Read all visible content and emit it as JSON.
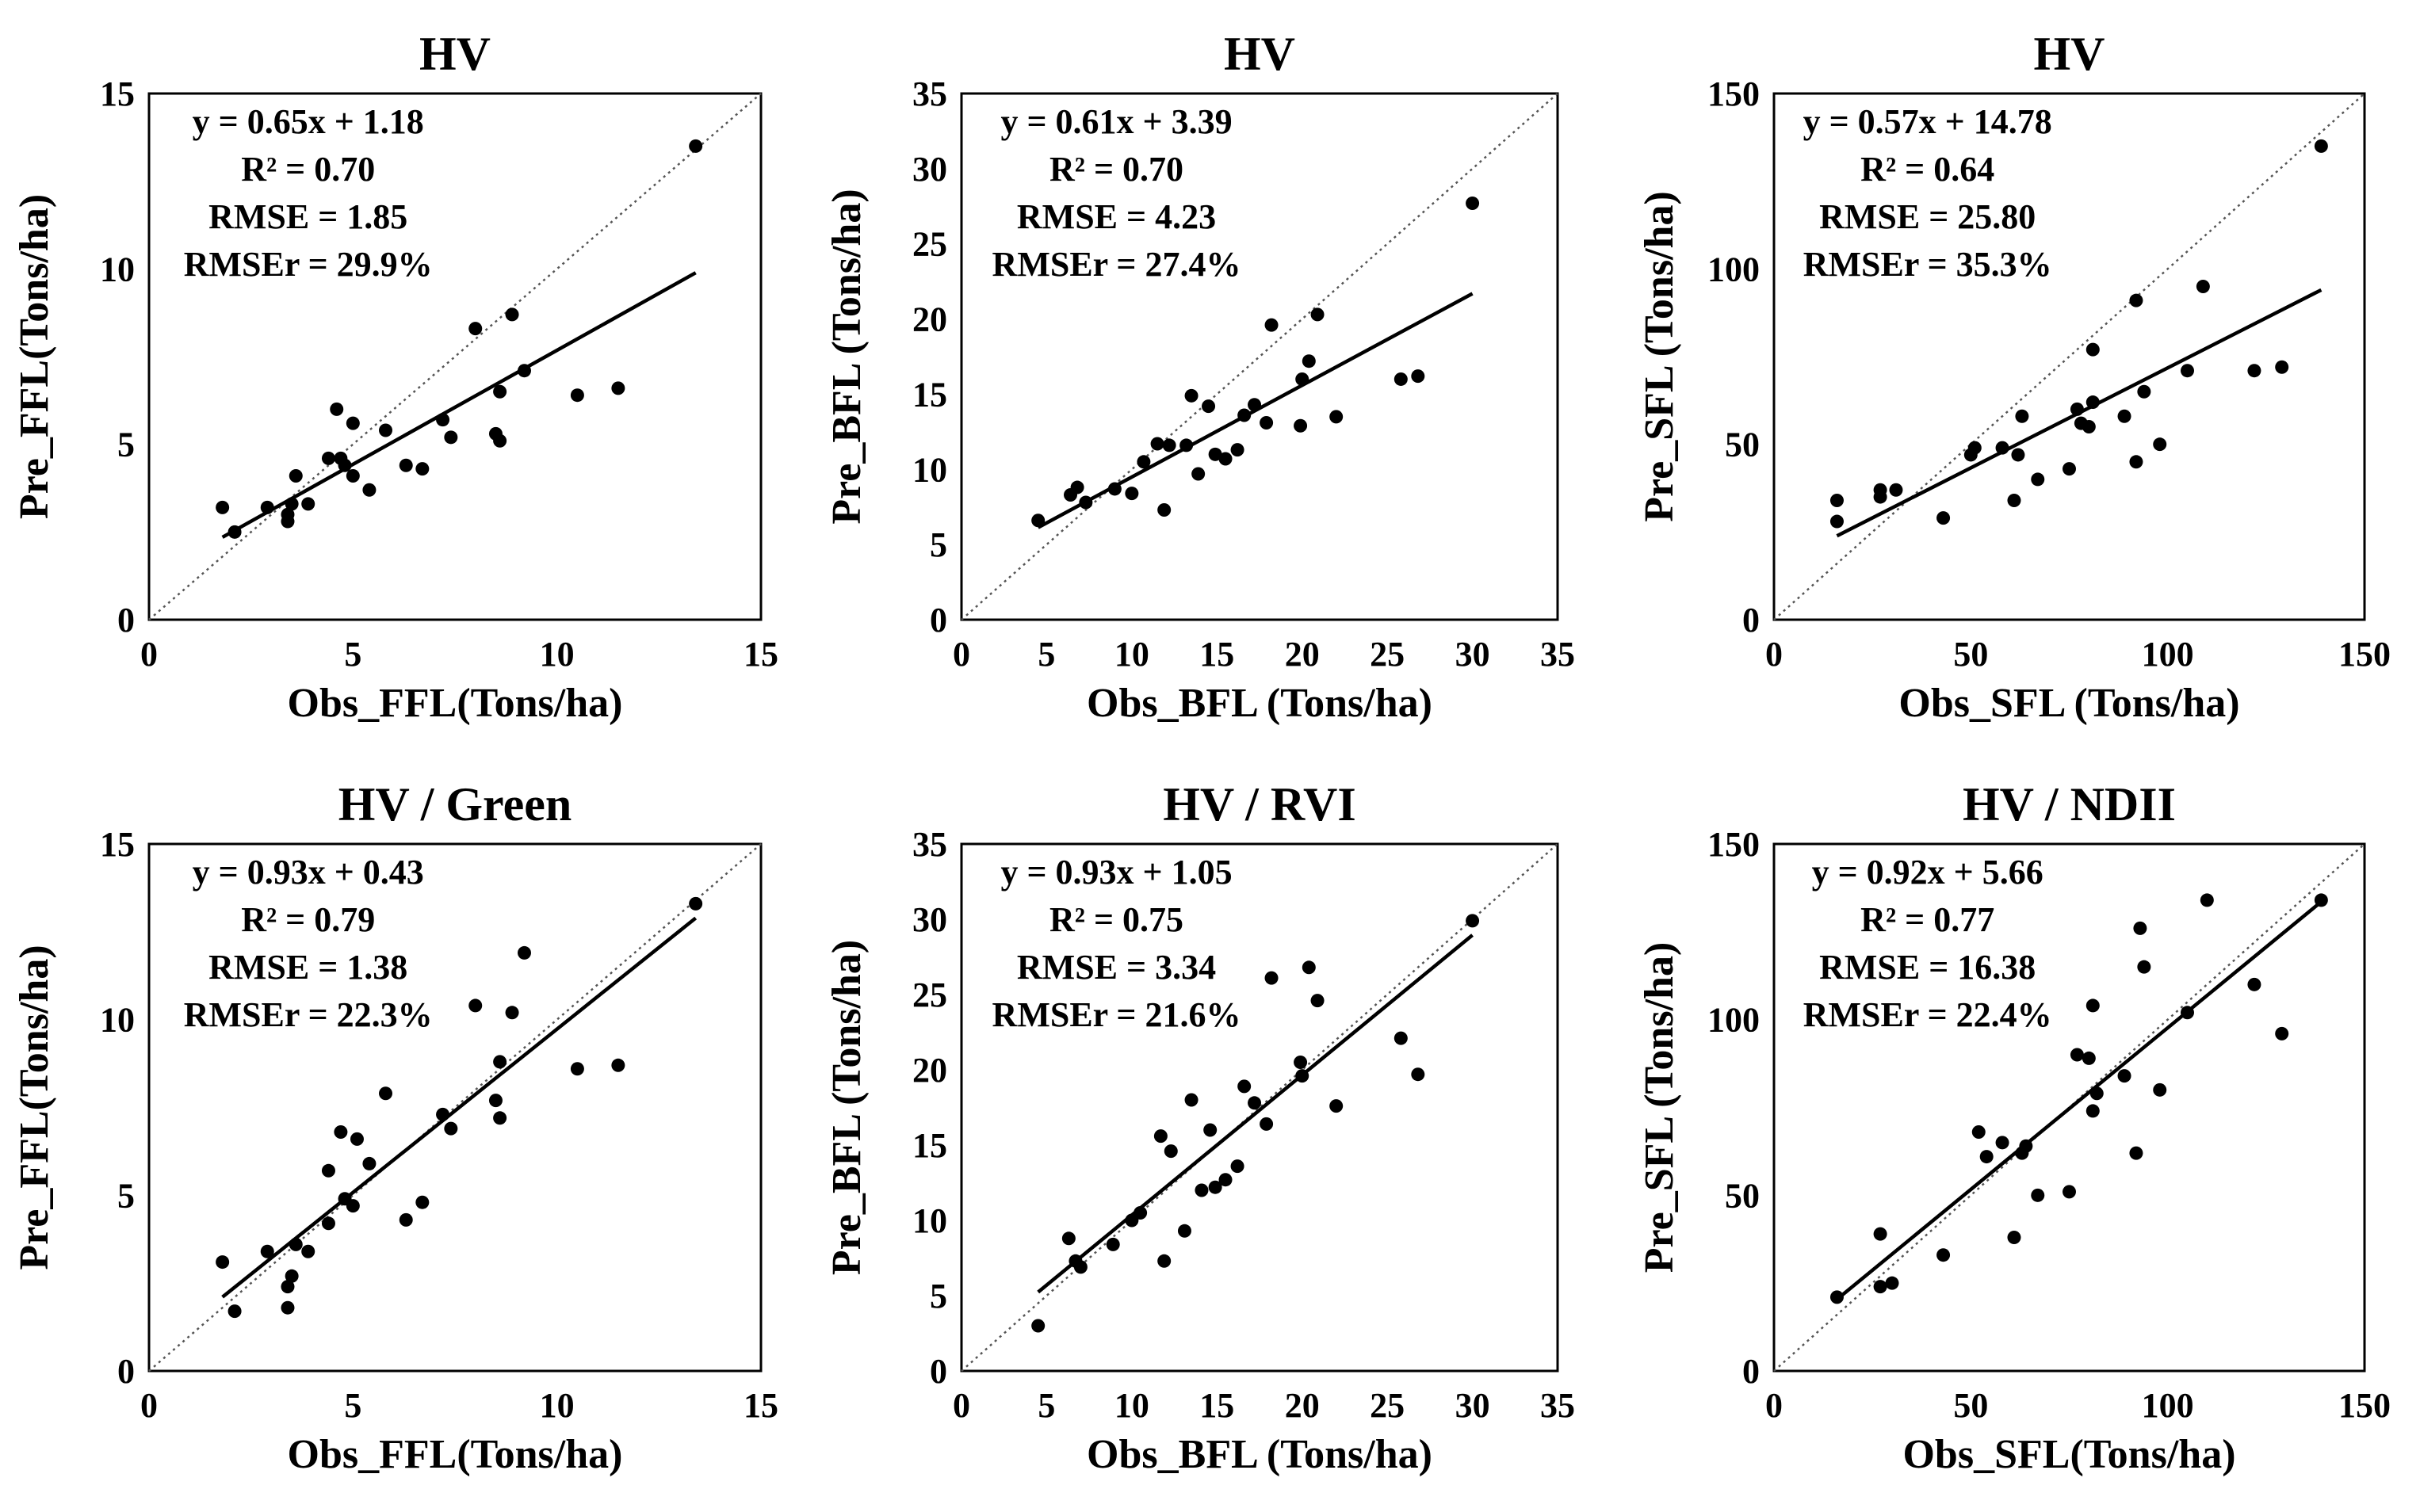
{
  "chart_data": [
    {
      "type": "scatter",
      "title": "HV",
      "xlabel": "Obs_FFL(Tons/ha)",
      "ylabel": "Pre_FFL(Tons/ha)",
      "xlim": [
        0,
        15
      ],
      "ylim": [
        0,
        15
      ],
      "xticks": [
        0,
        5,
        10,
        15
      ],
      "yticks": [
        0,
        5,
        10,
        15
      ],
      "equation": {
        "lines": [
          "y = 0.65x + 1.18",
          "R² = 0.70",
          "RMSE = 1.85",
          "RMSEr = 29.9%"
        ]
      },
      "fit": {
        "slope": 0.65,
        "intercept": 1.18,
        "x_range": [
          1.8,
          13.4
        ]
      },
      "one_to_one_line": true,
      "series": [
        {
          "name": "observations",
          "points": [
            [
              1.8,
              3.2
            ],
            [
              2.1,
              2.5
            ],
            [
              2.9,
              3.2
            ],
            [
              3.4,
              3.0
            ],
            [
              3.4,
              2.8
            ],
            [
              3.5,
              3.3
            ],
            [
              3.6,
              4.1
            ],
            [
              3.9,
              3.3
            ],
            [
              4.4,
              4.6
            ],
            [
              4.6,
              6.0
            ],
            [
              4.7,
              4.6
            ],
            [
              4.8,
              4.4
            ],
            [
              5.0,
              4.1
            ],
            [
              5.0,
              5.6
            ],
            [
              5.4,
              3.7
            ],
            [
              5.8,
              5.4
            ],
            [
              6.3,
              4.4
            ],
            [
              6.7,
              4.3
            ],
            [
              7.2,
              5.7
            ],
            [
              7.4,
              5.2
            ],
            [
              8.0,
              8.3
            ],
            [
              8.5,
              5.3
            ],
            [
              8.6,
              5.1
            ],
            [
              8.6,
              6.5
            ],
            [
              8.9,
              8.7
            ],
            [
              9.2,
              7.1
            ],
            [
              10.5,
              6.4
            ],
            [
              11.5,
              6.6
            ],
            [
              13.4,
              13.5
            ]
          ]
        }
      ]
    },
    {
      "type": "scatter",
      "title": "HV",
      "xlabel": "Obs_BFL (Tons/ha)",
      "ylabel": "Pre_BFL (Tons/ha)",
      "xlim": [
        0,
        35
      ],
      "ylim": [
        0,
        35
      ],
      "xticks": [
        0,
        5,
        10,
        15,
        20,
        25,
        30,
        35
      ],
      "yticks": [
        0,
        5,
        10,
        15,
        20,
        25,
        30,
        35
      ],
      "equation": {
        "lines": [
          "y = 0.61x + 3.39",
          "R² = 0.70",
          "RMSE = 4.23",
          "RMSEr = 27.4%"
        ]
      },
      "fit": {
        "slope": 0.61,
        "intercept": 3.39,
        "x_range": [
          4.5,
          30
        ]
      },
      "one_to_one_line": true,
      "series": [
        {
          "name": "observations",
          "points": [
            [
              4.5,
              6.6
            ],
            [
              6.4,
              8.3
            ],
            [
              6.8,
              8.8
            ],
            [
              7.3,
              7.8
            ],
            [
              9.0,
              8.7
            ],
            [
              10.0,
              8.4
            ],
            [
              10.7,
              10.5
            ],
            [
              11.5,
              11.7
            ],
            [
              11.9,
              7.3
            ],
            [
              12.2,
              11.6
            ],
            [
              13.2,
              11.6
            ],
            [
              13.5,
              14.9
            ],
            [
              13.9,
              9.7
            ],
            [
              14.5,
              14.2
            ],
            [
              14.9,
              11.0
            ],
            [
              15.5,
              10.7
            ],
            [
              16.2,
              11.3
            ],
            [
              16.6,
              13.6
            ],
            [
              17.2,
              14.3
            ],
            [
              17.9,
              13.1
            ],
            [
              18.2,
              19.6
            ],
            [
              19.9,
              12.9
            ],
            [
              20.0,
              16.0
            ],
            [
              20.4,
              17.2
            ],
            [
              20.9,
              20.3
            ],
            [
              22.0,
              13.5
            ],
            [
              25.8,
              16.0
            ],
            [
              26.8,
              16.2
            ],
            [
              30.0,
              27.7
            ]
          ]
        }
      ]
    },
    {
      "type": "scatter",
      "title": "HV",
      "xlabel": "Obs_SFL (Tons/ha)",
      "ylabel": "Pre_SFL (Tons/ha)",
      "xlim": [
        0,
        150
      ],
      "ylim": [
        0,
        150
      ],
      "xticks": [
        0,
        50,
        100,
        150
      ],
      "yticks": [
        0,
        50,
        100,
        150
      ],
      "equation": {
        "lines": [
          "y = 0.57x + 14.78",
          "R² = 0.64",
          "RMSE = 25.80",
          "RMSEr = 35.3%"
        ]
      },
      "fit": {
        "slope": 0.57,
        "intercept": 14.78,
        "x_range": [
          16,
          139
        ]
      },
      "one_to_one_line": true,
      "series": [
        {
          "name": "observations",
          "points": [
            [
              16,
              28
            ],
            [
              16,
              34
            ],
            [
              27,
              35
            ],
            [
              27,
              37
            ],
            [
              31,
              37
            ],
            [
              43,
              29
            ],
            [
              50,
              47
            ],
            [
              51,
              49
            ],
            [
              58,
              49
            ],
            [
              61,
              34
            ],
            [
              62,
              47
            ],
            [
              63,
              58
            ],
            [
              67,
              40
            ],
            [
              75,
              43
            ],
            [
              77,
              60
            ],
            [
              78,
              56
            ],
            [
              80,
              55
            ],
            [
              81,
              62
            ],
            [
              81,
              77
            ],
            [
              89,
              58
            ],
            [
              92,
              45
            ],
            [
              92,
              91
            ],
            [
              94,
              65
            ],
            [
              98,
              50
            ],
            [
              105,
              71
            ],
            [
              109,
              95
            ],
            [
              122,
              71
            ],
            [
              129,
              72
            ],
            [
              139,
              135
            ]
          ]
        }
      ]
    },
    {
      "type": "scatter",
      "title": "HV / Green",
      "xlabel": "Obs_FFL(Tons/ha)",
      "ylabel": "Pre_FFL(Tons/ha)",
      "xlim": [
        0,
        15
      ],
      "ylim": [
        0,
        15
      ],
      "xticks": [
        0,
        5,
        10,
        15
      ],
      "yticks": [
        0,
        5,
        10,
        15
      ],
      "equation": {
        "lines": [
          "y = 0.93x + 0.43",
          "R² = 0.79",
          "RMSE = 1.38",
          "RMSEr = 22.3%"
        ]
      },
      "fit": {
        "slope": 0.93,
        "intercept": 0.43,
        "x_range": [
          1.8,
          13.4
        ]
      },
      "one_to_one_line": true,
      "series": [
        {
          "name": "observations",
          "points": [
            [
              1.8,
              3.1
            ],
            [
              2.1,
              1.7
            ],
            [
              2.9,
              3.4
            ],
            [
              3.4,
              2.4
            ],
            [
              3.4,
              1.8
            ],
            [
              3.5,
              2.7
            ],
            [
              3.6,
              3.6
            ],
            [
              3.9,
              3.4
            ],
            [
              4.4,
              5.7
            ],
            [
              4.4,
              4.2
            ],
            [
              4.7,
              6.8
            ],
            [
              4.8,
              4.9
            ],
            [
              5.0,
              4.7
            ],
            [
              5.1,
              6.6
            ],
            [
              5.4,
              5.9
            ],
            [
              5.8,
              7.9
            ],
            [
              6.3,
              4.3
            ],
            [
              6.7,
              4.8
            ],
            [
              7.2,
              7.3
            ],
            [
              7.4,
              6.9
            ],
            [
              8.0,
              10.4
            ],
            [
              8.5,
              7.7
            ],
            [
              8.6,
              7.2
            ],
            [
              8.6,
              8.8
            ],
            [
              8.9,
              10.2
            ],
            [
              9.2,
              11.9
            ],
            [
              10.5,
              8.6
            ],
            [
              11.5,
              8.7
            ],
            [
              13.4,
              13.3
            ]
          ]
        }
      ]
    },
    {
      "type": "scatter",
      "title": "HV / RVI",
      "xlabel": "Obs_BFL (Tons/ha)",
      "ylabel": "Pre_BFL (Tons/ha)",
      "xlim": [
        0,
        35
      ],
      "ylim": [
        0,
        35
      ],
      "xticks": [
        0,
        5,
        10,
        15,
        20,
        25,
        30,
        35
      ],
      "yticks": [
        0,
        5,
        10,
        15,
        20,
        25,
        30,
        35
      ],
      "equation": {
        "lines": [
          "y = 0.93x + 1.05",
          "R² = 0.75",
          "RMSE = 3.34",
          "RMSEr = 21.6%"
        ]
      },
      "fit": {
        "slope": 0.93,
        "intercept": 1.05,
        "x_range": [
          4.5,
          30
        ]
      },
      "one_to_one_line": true,
      "series": [
        {
          "name": "observations",
          "points": [
            [
              4.5,
              3.0
            ],
            [
              6.3,
              8.8
            ],
            [
              6.7,
              7.3
            ],
            [
              7.0,
              6.9
            ],
            [
              8.9,
              8.4
            ],
            [
              10.0,
              10.0
            ],
            [
              10.5,
              10.5
            ],
            [
              11.7,
              15.6
            ],
            [
              11.9,
              7.3
            ],
            [
              12.3,
              14.6
            ],
            [
              13.1,
              9.3
            ],
            [
              13.5,
              18.0
            ],
            [
              14.1,
              12.0
            ],
            [
              14.6,
              16.0
            ],
            [
              14.9,
              12.2
            ],
            [
              15.5,
              12.7
            ],
            [
              16.2,
              13.6
            ],
            [
              16.6,
              18.9
            ],
            [
              17.2,
              17.8
            ],
            [
              17.9,
              16.4
            ],
            [
              18.2,
              26.1
            ],
            [
              19.9,
              20.5
            ],
            [
              20.0,
              19.6
            ],
            [
              20.4,
              26.8
            ],
            [
              20.9,
              24.6
            ],
            [
              22.0,
              17.6
            ],
            [
              25.8,
              22.1
            ],
            [
              26.8,
              19.7
            ],
            [
              30.0,
              29.9
            ]
          ]
        }
      ]
    },
    {
      "type": "scatter",
      "title": "HV / NDII",
      "xlabel": "Obs_SFL(Tons/ha)",
      "ylabel": "Pre_SFL (Tons/ha)",
      "xlim": [
        0,
        150
      ],
      "ylim": [
        0,
        150
      ],
      "xticks": [
        0,
        50,
        100,
        150
      ],
      "yticks": [
        0,
        50,
        100,
        150
      ],
      "equation": {
        "lines": [
          "y = 0.92x + 5.66",
          "R² = 0.77",
          "RMSE = 16.38",
          "RMSEr = 22.4%"
        ]
      },
      "fit": {
        "slope": 0.92,
        "intercept": 5.66,
        "x_range": [
          16,
          139
        ]
      },
      "one_to_one_line": true,
      "series": [
        {
          "name": "observations",
          "points": [
            [
              16,
              21
            ],
            [
              27,
              24
            ],
            [
              27,
              39
            ],
            [
              30,
              25
            ],
            [
              43,
              33
            ],
            [
              52,
              68
            ],
            [
              54,
              61
            ],
            [
              58,
              65
            ],
            [
              61,
              38
            ],
            [
              63,
              62
            ],
            [
              64,
              64
            ],
            [
              67,
              50
            ],
            [
              75,
              51
            ],
            [
              77,
              90
            ],
            [
              80,
              89
            ],
            [
              81,
              74
            ],
            [
              81,
              104
            ],
            [
              82,
              79
            ],
            [
              89,
              84
            ],
            [
              92,
              62
            ],
            [
              93,
              126
            ],
            [
              94,
              115
            ],
            [
              98,
              80
            ],
            [
              105,
              102
            ],
            [
              110,
              134
            ],
            [
              122,
              110
            ],
            [
              129,
              96
            ],
            [
              139,
              134
            ]
          ]
        }
      ]
    }
  ]
}
